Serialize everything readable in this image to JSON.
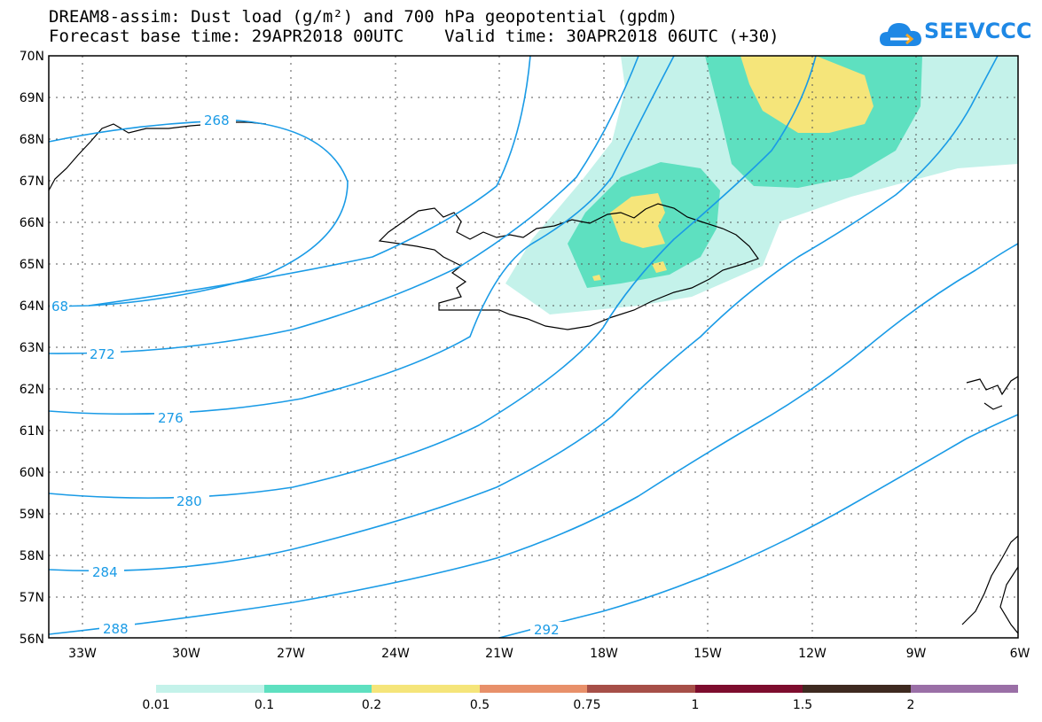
{
  "title_line1": "DREAM8-assim: Dust load (g/m²) and 700 hPa geopotential (gpdm)",
  "title_line2": "Forecast base time: 29APR2018 00UTC    Valid time: 30APR2018 06UTC (+30)",
  "logo_text": "SEEVCCC",
  "logo_icon": "cloud-icon",
  "lat_labels": [
    "70N",
    "69N",
    "68N",
    "67N",
    "66N",
    "65N",
    "64N",
    "63N",
    "62N",
    "61N",
    "60N",
    "59N",
    "58N",
    "57N",
    "56N"
  ],
  "lon_labels": [
    "33W",
    "30W",
    "27W",
    "24W",
    "21W",
    "18W",
    "15W",
    "12W",
    "9W",
    "6W"
  ],
  "contour_labels": [
    "268",
    "68",
    "272",
    "276",
    "280",
    "284",
    "288",
    "292"
  ],
  "colorbar": {
    "labels": [
      "0.01",
      "0.1",
      "0.2",
      "0.5",
      "0.75",
      "1",
      "1.5",
      "2"
    ],
    "colors": [
      "#c4f2ea",
      "#5ee0c0",
      "#f5e57a",
      "#e8906a",
      "#a64f48",
      "#7d0d2e",
      "#3e2a20",
      "#9a6fa6"
    ]
  },
  "colors": {
    "contour": "#1a9be6",
    "coast": "#000000",
    "dust_low": "#c4f2ea",
    "dust_mid": "#5ee0c0",
    "dust_high": "#f5e57a"
  }
}
